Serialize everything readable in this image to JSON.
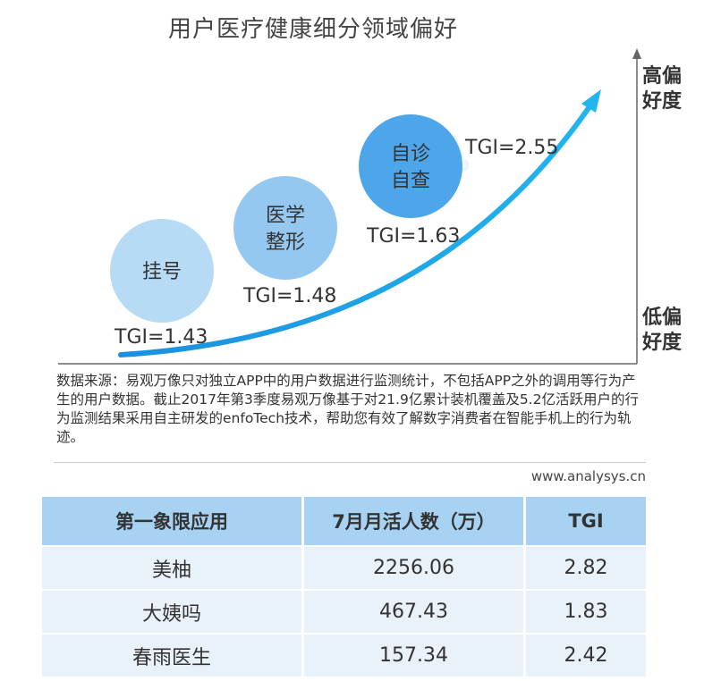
{
  "title": "用户医疗健康细分领域偏好",
  "axis": {
    "high_label": "高偏好度",
    "low_label": "低偏好度"
  },
  "chart_data": {
    "type": "scatter",
    "title": "用户医疗健康细分领域偏好",
    "points": [
      {
        "label": "挂号",
        "lines": [
          "挂号"
        ],
        "tgi": 1.43,
        "tgi_label": "TGI=1.43"
      },
      {
        "label": "医学整形",
        "lines": [
          "医学",
          "整形"
        ],
        "tgi": 1.48,
        "tgi_label": "TGI=1.48"
      },
      {
        "label": "自诊自查",
        "lines": [
          "自诊",
          "自查"
        ],
        "tgi": 1.63,
        "tgi_label": "TGI=1.63"
      }
    ],
    "curve_end_label": "TGI=2.55",
    "curve_end_tgi": 2.55,
    "colors": [
      "#b7dbf5",
      "#95c8f1",
      "#4da6ea"
    ],
    "curve_color": "#1ba3e8"
  },
  "source": {
    "text": "数据来源：易观万像只对独立APP中的用户数据进行监测统计，不包括APP之外的调用等行为产生的用户数据。截止2017年第3季度易观万像基于对21.9亿累计装机覆盖及5.2亿活跃用户的行为监测结果采用自主研发的enfoTech技术，帮助您有效了解数字消费者在智能手机上的行为轨迹。",
    "site": "www.analysys.cn"
  },
  "table": {
    "headers": [
      "第一象限应用",
      "7月月活人数（万）",
      "TGI"
    ],
    "rows": [
      [
        "美柚",
        "2256.06",
        "2.82"
      ],
      [
        "大姨吗",
        "467.43",
        "1.83"
      ],
      [
        "春雨医生",
        "157.34",
        "2.42"
      ]
    ]
  }
}
